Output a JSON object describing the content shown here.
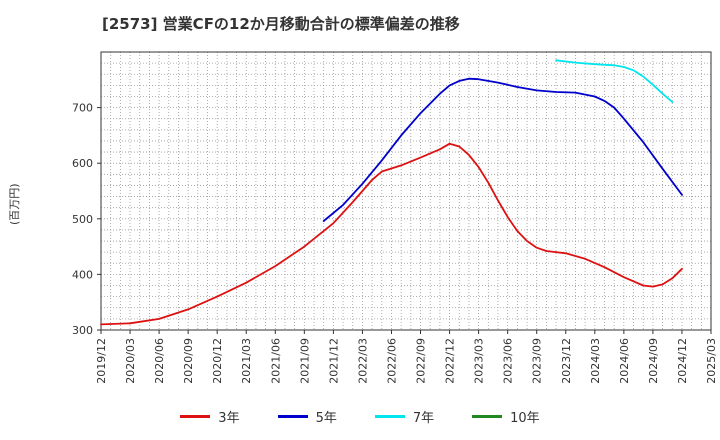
{
  "chart_data": {
    "type": "line",
    "title": "[2573]  営業CFの12か月移動合計の標準偏差の推移",
    "ylabel": "(百万円)",
    "xlabel": "",
    "ylim": [
      300,
      800
    ],
    "yticks": [
      300,
      400,
      500,
      600,
      700
    ],
    "xlim": [
      "2019-12",
      "2025-03"
    ],
    "xticks": [
      "2019/12",
      "2020/03",
      "2020/06",
      "2020/09",
      "2020/12",
      "2021/03",
      "2021/06",
      "2021/09",
      "2021/12",
      "2022/03",
      "2022/06",
      "2022/09",
      "2022/12",
      "2023/03",
      "2023/06",
      "2023/09",
      "2023/12",
      "2024/03",
      "2024/06",
      "2024/09",
      "2024/12",
      "2025/03"
    ],
    "grid": true,
    "legend_position": "bottom",
    "series": [
      {
        "name": "3年",
        "color": "#dd1111",
        "points": [
          [
            "2019-12",
            310
          ],
          [
            "2020-03",
            312
          ],
          [
            "2020-06",
            320
          ],
          [
            "2020-09",
            337
          ],
          [
            "2020-12",
            360
          ],
          [
            "2021-03",
            385
          ],
          [
            "2021-06",
            415
          ],
          [
            "2021-09",
            450
          ],
          [
            "2021-12",
            492
          ],
          [
            "2022-02",
            530
          ],
          [
            "2022-04",
            570
          ],
          [
            "2022-05",
            585
          ],
          [
            "2022-07",
            596
          ],
          [
            "2022-09",
            610
          ],
          [
            "2022-11",
            625
          ],
          [
            "2022-12",
            635
          ],
          [
            "2023-01",
            630
          ],
          [
            "2023-02",
            615
          ],
          [
            "2023-03",
            593
          ],
          [
            "2023-04",
            565
          ],
          [
            "2023-05",
            533
          ],
          [
            "2023-06",
            503
          ],
          [
            "2023-07",
            478
          ],
          [
            "2023-08",
            460
          ],
          [
            "2023-09",
            448
          ],
          [
            "2023-10",
            442
          ],
          [
            "2023-12",
            438
          ],
          [
            "2024-02",
            428
          ],
          [
            "2024-04",
            413
          ],
          [
            "2024-06",
            395
          ],
          [
            "2024-08",
            380
          ],
          [
            "2024-09",
            378
          ],
          [
            "2024-10",
            382
          ],
          [
            "2024-11",
            393
          ],
          [
            "2024-12",
            410
          ]
        ]
      },
      {
        "name": "5年",
        "color": "#0000cc",
        "points": [
          [
            "2021-11",
            496
          ],
          [
            "2022-01",
            525
          ],
          [
            "2022-03",
            563
          ],
          [
            "2022-05",
            605
          ],
          [
            "2022-07",
            650
          ],
          [
            "2022-09",
            690
          ],
          [
            "2022-11",
            725
          ],
          [
            "2022-12",
            740
          ],
          [
            "2023-01",
            748
          ],
          [
            "2023-02",
            752
          ],
          [
            "2023-03",
            751
          ],
          [
            "2023-05",
            745
          ],
          [
            "2023-07",
            737
          ],
          [
            "2023-09",
            731
          ],
          [
            "2023-11",
            728
          ],
          [
            "2024-01",
            727
          ],
          [
            "2024-03",
            720
          ],
          [
            "2024-04",
            712
          ],
          [
            "2024-05",
            700
          ],
          [
            "2024-06",
            680
          ],
          [
            "2024-08",
            638
          ],
          [
            "2024-10",
            590
          ],
          [
            "2024-12",
            543
          ]
        ]
      },
      {
        "name": "7年",
        "color": "#00e5ee",
        "points": [
          [
            "2023-11",
            785
          ],
          [
            "2024-01",
            781
          ],
          [
            "2024-03",
            778
          ],
          [
            "2024-05",
            776
          ],
          [
            "2024-06",
            773
          ],
          [
            "2024-07",
            767
          ],
          [
            "2024-08",
            756
          ],
          [
            "2024-09",
            741
          ],
          [
            "2024-10",
            725
          ],
          [
            "2024-11",
            710
          ]
        ]
      },
      {
        "name": "10年",
        "color": "#228822",
        "points": []
      }
    ]
  }
}
